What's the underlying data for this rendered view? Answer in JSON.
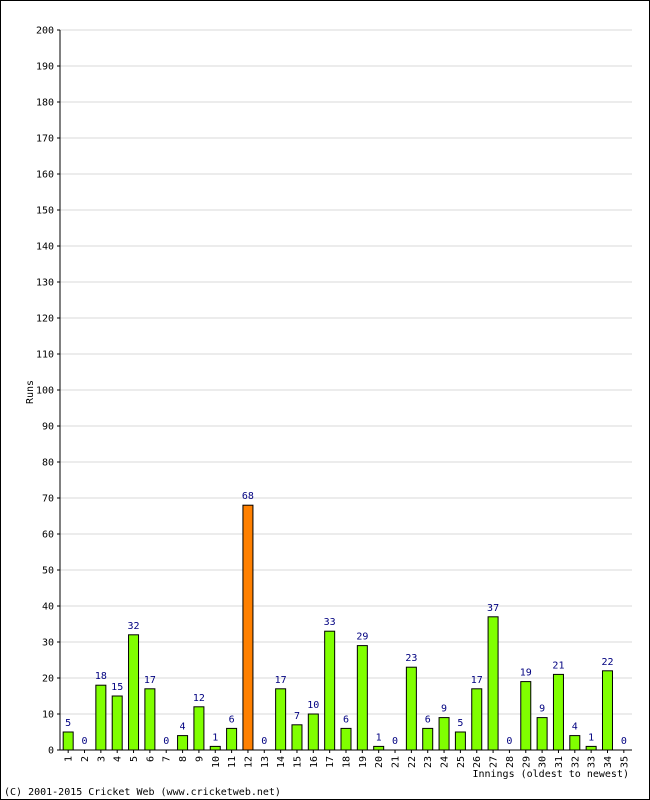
{
  "chart_data": {
    "type": "bar",
    "ylabel": "Runs",
    "xlabel": "Innings (oldest to newest)",
    "ylim": [
      0,
      200
    ],
    "ytick_step": 10,
    "grid": true,
    "categories": [
      "1",
      "2",
      "3",
      "4",
      "5",
      "6",
      "7",
      "8",
      "9",
      "10",
      "11",
      "12",
      "13",
      "14",
      "15",
      "16",
      "17",
      "18",
      "19",
      "20",
      "21",
      "22",
      "23",
      "24",
      "25",
      "26",
      "27",
      "28",
      "29",
      "30",
      "31",
      "32",
      "33",
      "34",
      "35"
    ],
    "values": [
      5,
      0,
      18,
      15,
      32,
      17,
      0,
      4,
      12,
      1,
      6,
      68,
      0,
      17,
      7,
      10,
      33,
      6,
      29,
      1,
      0,
      23,
      6,
      9,
      5,
      17,
      37,
      0,
      19,
      9,
      21,
      4,
      1,
      22,
      0
    ],
    "highlight_index": 11,
    "colors": {
      "bar": "#80ff00",
      "highlight": "#ff8000",
      "bar_border": "#000000",
      "grid": "#d8d8d8",
      "value_label": "#000080"
    }
  },
  "footer": {
    "copyright": "(C) 2001-2015 Cricket Web (www.cricketweb.net)"
  }
}
